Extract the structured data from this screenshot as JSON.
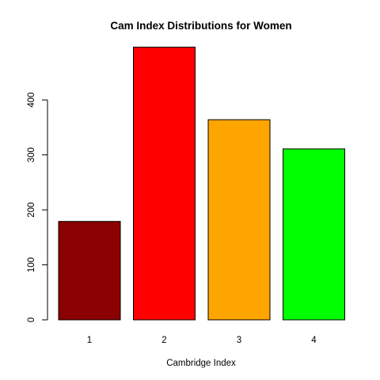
{
  "chart_data": {
    "type": "bar",
    "title": "Cam Index Distributions for Women",
    "xlabel": "Cambridge Index",
    "ylabel": "",
    "categories": [
      "1",
      "2",
      "3",
      "4"
    ],
    "values": [
      179,
      496,
      364,
      311
    ],
    "colors": [
      "#8B0000",
      "#FF0000",
      "#FFA500",
      "#00FF00"
    ],
    "ylim": [
      0,
      500
    ],
    "yticks": [
      "0",
      "100",
      "200",
      "300",
      "400"
    ],
    "grid": false,
    "legend": "none"
  }
}
